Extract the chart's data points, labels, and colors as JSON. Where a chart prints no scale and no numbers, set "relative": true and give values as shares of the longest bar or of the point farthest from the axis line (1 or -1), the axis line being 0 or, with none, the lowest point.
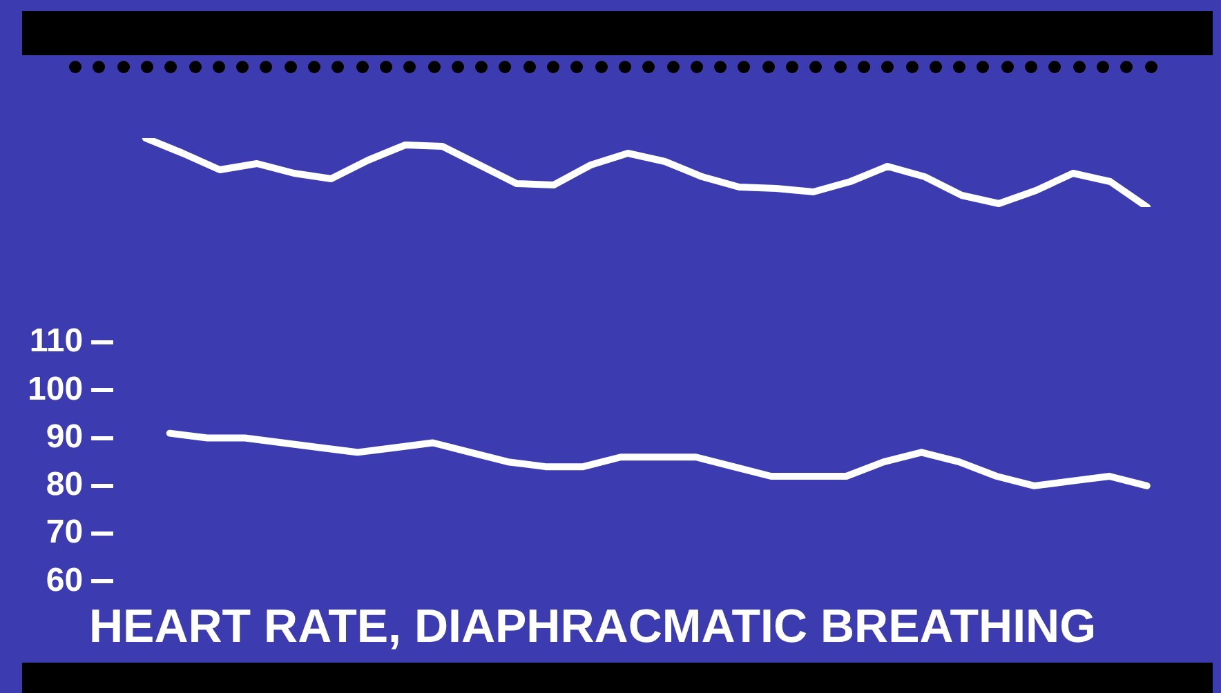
{
  "chart_data": [
    {
      "type": "line",
      "relative": true,
      "categories": [
        null,
        null,
        null,
        null,
        null,
        null,
        null,
        null,
        null,
        null,
        null,
        null,
        null,
        null,
        null,
        null,
        null,
        null,
        null,
        null,
        null,
        null,
        null,
        null,
        null,
        null,
        null,
        null
      ],
      "series": [
        {
          "color": "#ffffff",
          "values": [
            1.0,
            0.78,
            0.54,
            0.63,
            0.49,
            0.41,
            0.68,
            0.9,
            0.88,
            0.61,
            0.34,
            0.32,
            0.61,
            0.78,
            0.66,
            0.44,
            0.29,
            0.27,
            0.22,
            0.37,
            0.59,
            0.44,
            0.17,
            0.05,
            0.24,
            0.49,
            0.37,
            0
          ]
        }
      ],
      "tick_labels": false
    },
    {
      "type": "line",
      "title": "HEART RATE, DIAPHRACMATIC BREATHING",
      "categories": [
        null,
        null,
        null,
        null,
        null,
        null,
        null,
        null,
        null,
        null,
        null,
        null,
        null,
        null,
        null,
        null,
        null,
        null,
        null,
        null,
        null,
        null,
        null,
        null,
        null,
        null,
        null,
        null
      ],
      "series": [
        {
          "color": "#ffffff",
          "values": [
            null,
            91,
            90,
            90,
            89,
            88,
            87,
            88,
            89,
            87,
            85,
            84,
            84,
            86,
            86,
            86,
            84,
            82,
            82,
            82,
            85,
            87,
            85,
            82,
            80,
            81,
            82,
            80
          ]
        }
      ],
      "ylim": [
        60,
        110
      ],
      "yticks": [
        60,
        70,
        80,
        90,
        100,
        110
      ],
      "tick_labels": "y"
    }
  ]
}
